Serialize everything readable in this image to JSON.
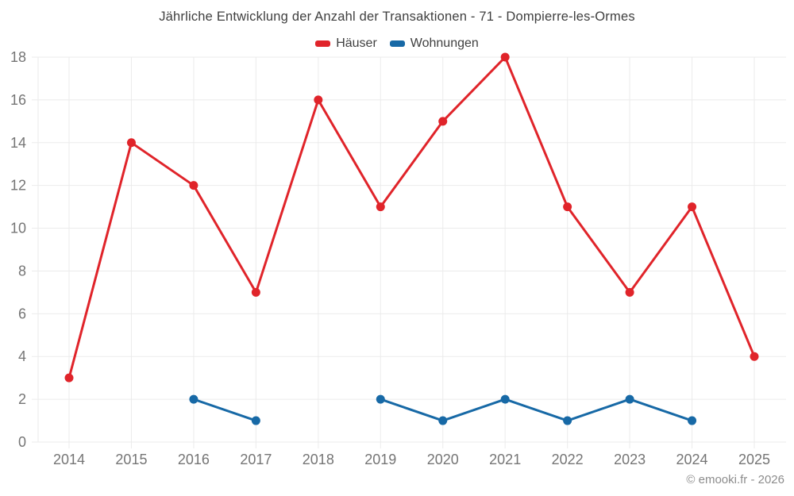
{
  "chart": {
    "title": "Jährliche Entwicklung der Anzahl der Transaktionen - 71 - Dompierre-les-Ormes",
    "copyright": "© emooki.fr - 2026"
  },
  "chart_data": {
    "type": "line",
    "title": "Jährliche Entwicklung der Anzahl der Transaktionen - 71 - Dompierre-les-Ormes",
    "categories": [
      "2014",
      "2015",
      "2016",
      "2017",
      "2018",
      "2019",
      "2020",
      "2021",
      "2022",
      "2023",
      "2024",
      "2025"
    ],
    "series": [
      {
        "name": "Häuser",
        "color": "#e0242a",
        "values": [
          3,
          14,
          12,
          7,
          16,
          11,
          15,
          18,
          11,
          7,
          11,
          4
        ]
      },
      {
        "name": "Wohnungen",
        "color": "#1769a6",
        "values": [
          null,
          null,
          2,
          1,
          null,
          2,
          1,
          2,
          1,
          2,
          1,
          null
        ]
      }
    ],
    "xlabel": "",
    "ylabel": "",
    "ylim": [
      0,
      18
    ],
    "ytick_step": 2,
    "grid": true,
    "legend_position": "top"
  },
  "style": {
    "grid_color": "#ebebeb",
    "axis_label_color": "#757575",
    "title_color": "#3f3f3f",
    "copyright_color": "#8c8c8c",
    "background": "#ffffff"
  }
}
